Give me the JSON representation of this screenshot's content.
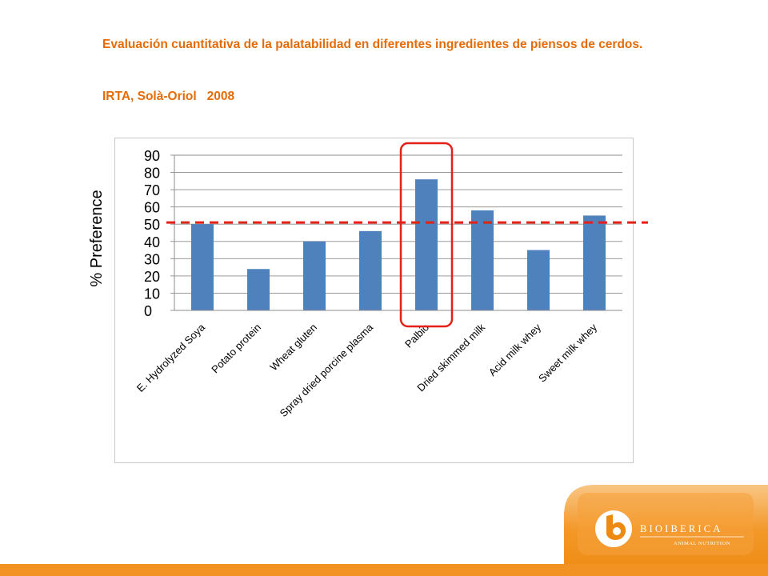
{
  "header": {
    "title": "Evaluación cuantitativa de la palatabilidad en diferentes ingredientes de piensos de cerdos.",
    "source": "IRTA, Solà-Oriol   2008"
  },
  "chart_data": {
    "type": "bar",
    "title": "",
    "xlabel": "",
    "ylabel": "% Preference",
    "categories": [
      "E. Hydrolyzed Soya",
      "Potato protein",
      "Wheat gluten",
      "Spray dried porcine plasma",
      "Palbio",
      "Dried skimmed milk",
      "Acid milk whey",
      "Sweet milk whey"
    ],
    "values": [
      50,
      24,
      40,
      46,
      76,
      58,
      35,
      55
    ],
    "ylim": [
      0,
      90
    ],
    "yticks": [
      0,
      10,
      20,
      30,
      40,
      50,
      60,
      70,
      80,
      90
    ],
    "grid": true,
    "reference_line": 51,
    "highlight_category": "Palbio",
    "bar_color": "#4f81bd",
    "reference_color": "#e32119",
    "highlight_color": "#e32119"
  },
  "brand": {
    "name": "BIOIBERICA",
    "tagline": "ANIMAL NUTRITION",
    "accent_color": "#f29222"
  }
}
